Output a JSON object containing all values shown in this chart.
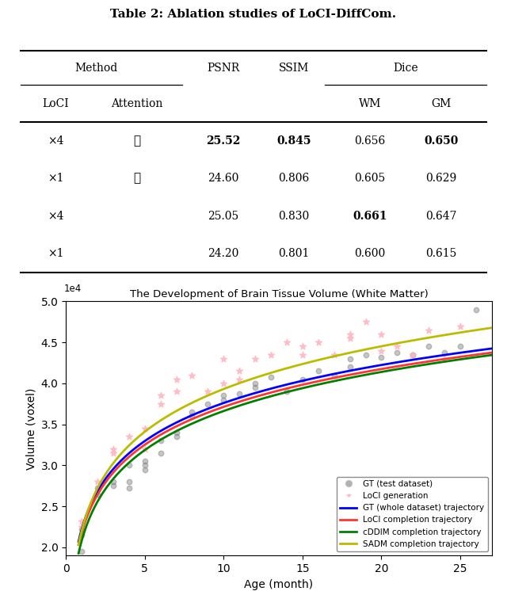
{
  "title_text": "Table 2: Ablation studies of LoCI-DiffCom.",
  "table": {
    "rows": [
      {
        "loci": "×4",
        "attention": true,
        "psnr": "25.52",
        "ssim": "0.845",
        "wm": "0.656",
        "gm": "0.650",
        "bold_psnr": true,
        "bold_ssim": true,
        "bold_wm": false,
        "bold_gm": true
      },
      {
        "loci": "×1",
        "attention": true,
        "psnr": "24.60",
        "ssim": "0.806",
        "wm": "0.605",
        "gm": "0.629",
        "bold_psnr": false,
        "bold_ssim": false,
        "bold_wm": false,
        "bold_gm": false
      },
      {
        "loci": "×4",
        "attention": false,
        "psnr": "25.05",
        "ssim": "0.830",
        "wm": "0.661",
        "gm": "0.647",
        "bold_psnr": false,
        "bold_ssim": false,
        "bold_wm": true,
        "bold_gm": false
      },
      {
        "loci": "×1",
        "attention": false,
        "psnr": "24.20",
        "ssim": "0.801",
        "wm": "0.600",
        "gm": "0.615",
        "bold_psnr": false,
        "bold_ssim": false,
        "bold_wm": false,
        "bold_gm": false
      }
    ]
  },
  "plot": {
    "title": "The Development of Brain Tissue Volume (White Matter)",
    "xlabel": "Age (month)",
    "ylabel": "Volume (voxel)",
    "xlim": [
      0,
      27
    ],
    "ylim": [
      19000,
      50000
    ],
    "ytick_vals": [
      20000,
      25000,
      30000,
      35000,
      40000,
      45000,
      50000
    ],
    "ytick_labels": [
      "2.0",
      "2.5",
      "3.0",
      "3.5",
      "4.0",
      "4.5",
      "5.0"
    ],
    "xticks": [
      0,
      5,
      10,
      15,
      20,
      25
    ],
    "gt_scatter_x": [
      1,
      1,
      1,
      2,
      2,
      3,
      3,
      4,
      4,
      4,
      5,
      5,
      5,
      6,
      6,
      7,
      7,
      8,
      8,
      9,
      10,
      10,
      11,
      12,
      12,
      13,
      14,
      15,
      16,
      17,
      18,
      18,
      19,
      20,
      21,
      22,
      23,
      24,
      25,
      26
    ],
    "gt_scatter_y": [
      22200,
      21500,
      19500,
      26500,
      27200,
      28000,
      27500,
      30000,
      28000,
      27200,
      29500,
      30000,
      30500,
      33000,
      31500,
      34000,
      33500,
      36500,
      36000,
      37500,
      38500,
      38000,
      38700,
      40000,
      39500,
      40800,
      39000,
      40500,
      41500,
      41000,
      43000,
      42000,
      43500,
      43200,
      43800,
      43500,
      44500,
      43800,
      44500,
      49000
    ],
    "loci_scatter_x": [
      1,
      1,
      2,
      3,
      3,
      4,
      5,
      5,
      6,
      6,
      7,
      7,
      8,
      9,
      10,
      10,
      11,
      11,
      12,
      13,
      14,
      15,
      15,
      16,
      17,
      18,
      18,
      19,
      20,
      20,
      21,
      22,
      23,
      24,
      25
    ],
    "loci_scatter_y": [
      22500,
      23200,
      28000,
      32000,
      31500,
      33500,
      32000,
      34500,
      37500,
      38500,
      39000,
      40500,
      41000,
      39000,
      43000,
      40000,
      40500,
      41500,
      43000,
      43500,
      45000,
      44500,
      43500,
      45000,
      43500,
      45500,
      46000,
      47500,
      44000,
      46000,
      44500,
      43500,
      46500,
      43000,
      47000
    ],
    "gt_a": 22200,
    "gt_b": 6800,
    "loci_a": 21800,
    "loci_b": 6600,
    "cddim_a": 20800,
    "cddim_b": 7100,
    "sadm_a": 22000,
    "sadm_b": 8200,
    "gt_color": "#0000FF",
    "loci_color": "#FF3333",
    "cddim_color": "#008000",
    "sadm_color": "#BBBB00",
    "legend_labels": [
      "GT (test dataset)",
      "LoCI generation",
      "GT (whole dataset) trajectory",
      "LoCI completion trajectory",
      "cDDIM completion trajectory",
      "SADM completion trajectory"
    ]
  }
}
